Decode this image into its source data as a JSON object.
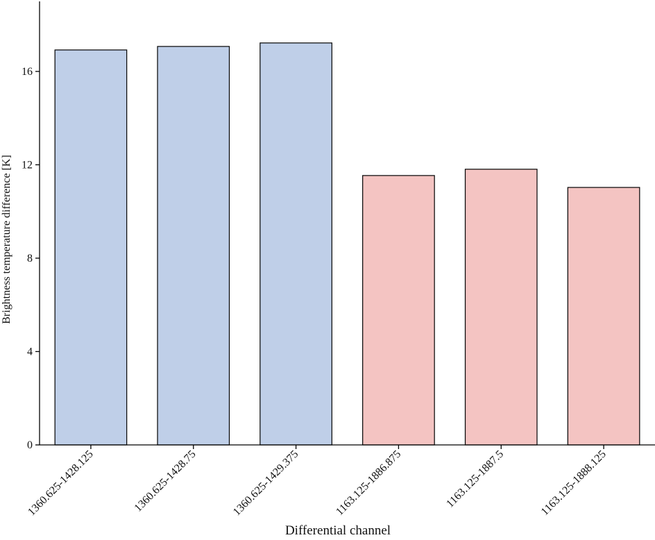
{
  "chart_data": {
    "type": "bar",
    "x_label": "Differential channel",
    "y_label": "Brightness temperature difference [K]",
    "categories": [
      "1360.625-1428.125",
      "1360.625-1428.75",
      "1360.625-1429.375",
      "1163.125-1886.875",
      "1163.125-1887.5",
      "1163.125-1888.125"
    ],
    "values": [
      16.92,
      17.07,
      17.22,
      11.54,
      11.81,
      11.03
    ],
    "colors": [
      "#bfcfe8",
      "#bfcfe8",
      "#bfcfe8",
      "#f4c4c2",
      "#f4c4c2",
      "#f4c4c2"
    ],
    "ylim": [
      0,
      19
    ],
    "yticks": [
      0,
      4,
      8,
      12,
      16
    ],
    "grid": false
  }
}
